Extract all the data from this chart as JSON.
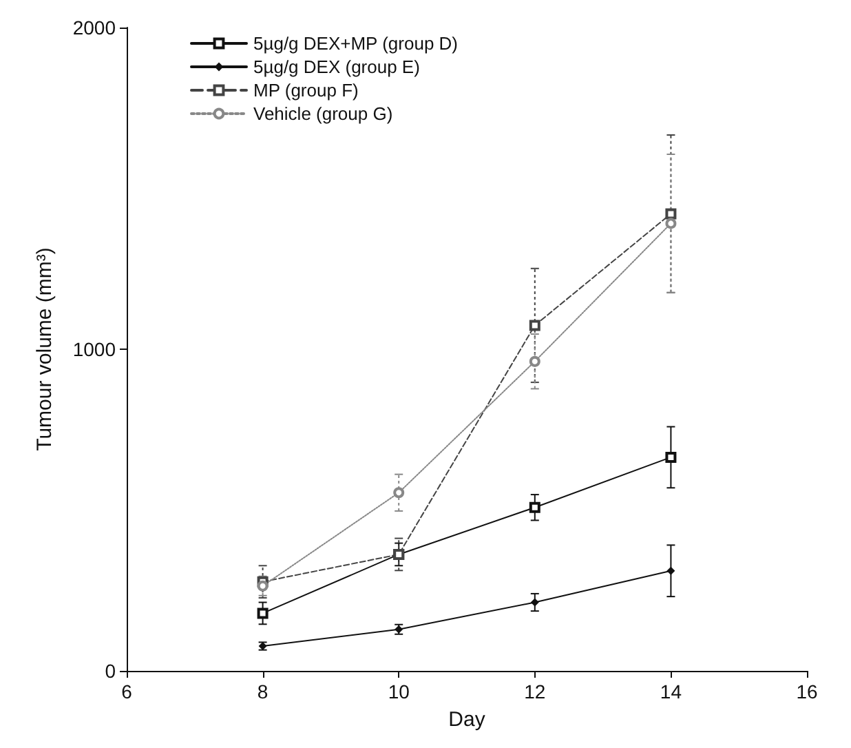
{
  "chart_data": {
    "type": "line",
    "xlabel": "Day",
    "ylabel": "Tumour volume (mm³)",
    "x": [
      8,
      10,
      12,
      14
    ],
    "xlim": [
      6,
      16
    ],
    "xticks": [
      6,
      8,
      10,
      12,
      14,
      16
    ],
    "ylim": [
      0,
      2000
    ],
    "yticks": [
      0,
      1000,
      2000
    ],
    "grid": false,
    "legend": "top left",
    "series": [
      {
        "name": "5µg/g DEX+MP (group D)",
        "color": "#111111",
        "marker": "square",
        "line_style": "solid",
        "values": [
          179,
          362,
          508,
          664
        ],
        "errors": [
          34,
          35,
          40,
          95
        ]
      },
      {
        "name": "5µg/g DEX (group E)",
        "color": "#111111",
        "marker": "diamond",
        "line_style": "solid",
        "values": [
          77,
          129,
          213,
          311
        ],
        "errors": [
          12,
          15,
          27,
          80
        ]
      },
      {
        "name": "MP (group F)",
        "color": "#444444",
        "marker": "square",
        "line_style": "dashed",
        "values": [
          277,
          362,
          1074,
          1421
        ],
        "errors": [
          50,
          50,
          177,
          245
        ]
      },
      {
        "name": "Vehicle (group G)",
        "color": "#888888",
        "marker": "circle",
        "line_style": "dotted",
        "values": [
          264,
          554,
          962,
          1391
        ],
        "errors": [
          30,
          57,
          85,
          215
        ]
      }
    ]
  }
}
